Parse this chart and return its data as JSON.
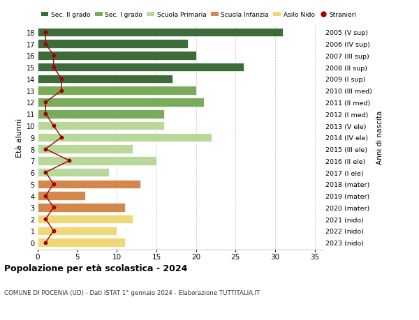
{
  "ages": [
    18,
    17,
    16,
    15,
    14,
    13,
    12,
    11,
    10,
    9,
    8,
    7,
    6,
    5,
    4,
    3,
    2,
    1,
    0
  ],
  "years_labels": [
    "2005 (V sup)",
    "2006 (IV sup)",
    "2007 (III sup)",
    "2008 (II sup)",
    "2009 (I sup)",
    "2010 (III med)",
    "2011 (II med)",
    "2012 (I med)",
    "2013 (V ele)",
    "2014 (IV ele)",
    "2015 (III ele)",
    "2016 (II ele)",
    "2017 (I ele)",
    "2018 (mater)",
    "2019 (mater)",
    "2020 (mater)",
    "2021 (nido)",
    "2022 (nido)",
    "2023 (nido)"
  ],
  "bar_values": [
    31,
    19,
    20,
    26,
    17,
    20,
    21,
    16,
    16,
    22,
    12,
    15,
    9,
    13,
    6,
    11,
    12,
    10,
    11
  ],
  "bar_colors": [
    "#3d6b3a",
    "#3d6b3a",
    "#3d6b3a",
    "#3d6b3a",
    "#3d6b3a",
    "#7aab5a",
    "#7aab5a",
    "#7aab5a",
    "#b8d89a",
    "#b8d89a",
    "#b8d89a",
    "#b8d89a",
    "#b8d89a",
    "#d4874a",
    "#d4874a",
    "#d4874a",
    "#f0d878",
    "#f0d878",
    "#f0d878"
  ],
  "stranieri_values": [
    1,
    1,
    2,
    2,
    3,
    3,
    1,
    1,
    2,
    3,
    1,
    4,
    1,
    2,
    1,
    2,
    1,
    2,
    1
  ],
  "stranieri_color": "#a00000",
  "legend_labels": [
    "Sec. II grado",
    "Sec. I grado",
    "Scuola Primaria",
    "Scuola Infanzia",
    "Asilo Nido",
    "Stranieri"
  ],
  "legend_colors": [
    "#3d6b3a",
    "#7aab5a",
    "#b8d89a",
    "#d4874a",
    "#f0d878",
    "#a00000"
  ],
  "ylabel_left": "Età alunni",
  "ylabel_right": "Anni di nascita",
  "title": "Popolazione per età scolastica - 2024",
  "subtitle": "COMUNE DI POCENIA (UD) - Dati ISTAT 1° gennaio 2024 - Elaborazione TUTTITALIA.IT",
  "xlim": [
    0,
    36
  ],
  "xticks": [
    0,
    5,
    10,
    15,
    20,
    25,
    30,
    35
  ],
  "bar_height": 0.75,
  "bg_color": "#ffffff",
  "grid_color": "#cccccc"
}
